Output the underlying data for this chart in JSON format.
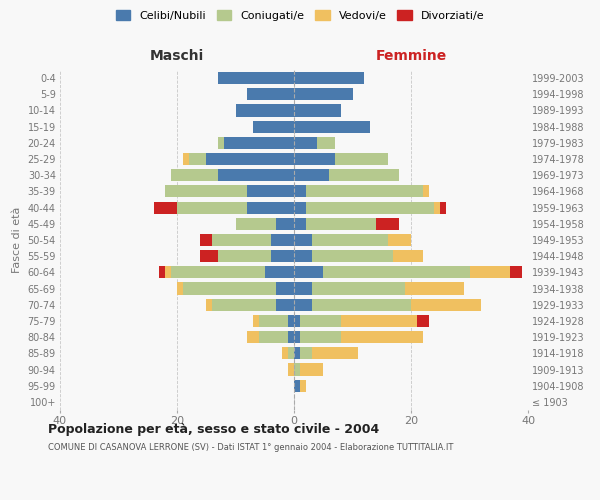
{
  "age_groups": [
    "100+",
    "95-99",
    "90-94",
    "85-89",
    "80-84",
    "75-79",
    "70-74",
    "65-69",
    "60-64",
    "55-59",
    "50-54",
    "45-49",
    "40-44",
    "35-39",
    "30-34",
    "25-29",
    "20-24",
    "15-19",
    "10-14",
    "5-9",
    "0-4"
  ],
  "birth_years": [
    "≤ 1903",
    "1904-1908",
    "1909-1913",
    "1914-1918",
    "1919-1923",
    "1924-1928",
    "1929-1933",
    "1934-1938",
    "1939-1943",
    "1944-1948",
    "1949-1953",
    "1954-1958",
    "1959-1963",
    "1964-1968",
    "1969-1973",
    "1974-1978",
    "1979-1983",
    "1984-1988",
    "1989-1993",
    "1994-1998",
    "1999-2003"
  ],
  "colors": {
    "celibi": "#4a7aad",
    "coniugati": "#b5c98e",
    "vedovi": "#f0c060",
    "divorziati": "#cc2222"
  },
  "males": {
    "celibi": [
      0,
      0,
      0,
      0,
      1,
      1,
      3,
      3,
      5,
      4,
      4,
      3,
      8,
      8,
      13,
      15,
      12,
      7,
      10,
      8,
      13
    ],
    "coniugati": [
      0,
      0,
      0,
      1,
      5,
      5,
      11,
      16,
      16,
      9,
      10,
      7,
      12,
      14,
      8,
      3,
      1,
      0,
      0,
      0,
      0
    ],
    "vedovi": [
      0,
      0,
      1,
      1,
      2,
      1,
      1,
      1,
      1,
      0,
      0,
      0,
      0,
      0,
      0,
      1,
      0,
      0,
      0,
      0,
      0
    ],
    "divorziati": [
      0,
      0,
      0,
      0,
      0,
      0,
      0,
      0,
      1,
      3,
      2,
      0,
      4,
      0,
      0,
      0,
      0,
      0,
      0,
      0,
      0
    ]
  },
  "females": {
    "celibi": [
      0,
      1,
      0,
      1,
      1,
      1,
      3,
      3,
      5,
      3,
      3,
      2,
      2,
      2,
      6,
      7,
      4,
      13,
      8,
      10,
      12
    ],
    "coniugati": [
      0,
      0,
      1,
      2,
      7,
      7,
      17,
      16,
      25,
      14,
      13,
      12,
      22,
      20,
      12,
      9,
      3,
      0,
      0,
      0,
      0
    ],
    "vedovi": [
      0,
      1,
      4,
      8,
      14,
      13,
      12,
      10,
      7,
      5,
      4,
      0,
      1,
      1,
      0,
      0,
      0,
      0,
      0,
      0,
      0
    ],
    "divorziati": [
      0,
      0,
      0,
      0,
      0,
      2,
      0,
      0,
      2,
      0,
      0,
      4,
      1,
      0,
      0,
      0,
      0,
      0,
      0,
      0,
      0
    ]
  },
  "xlim": 40,
  "title": "Popolazione per età, sesso e stato civile - 2004",
  "subtitle": "COMUNE DI CASANOVA LERRONE (SV) - Dati ISTAT 1° gennaio 2004 - Elaborazione TUTTITALIA.IT",
  "ylabel_left": "Fasce di età",
  "xlabel_left": "Maschi",
  "xlabel_right": "Femmine",
  "maschi_color": "#333333",
  "femmine_color": "#cc2222",
  "bg_color": "#f8f8f8",
  "grid_color": "#bbbbbb",
  "tick_color": "#777777"
}
